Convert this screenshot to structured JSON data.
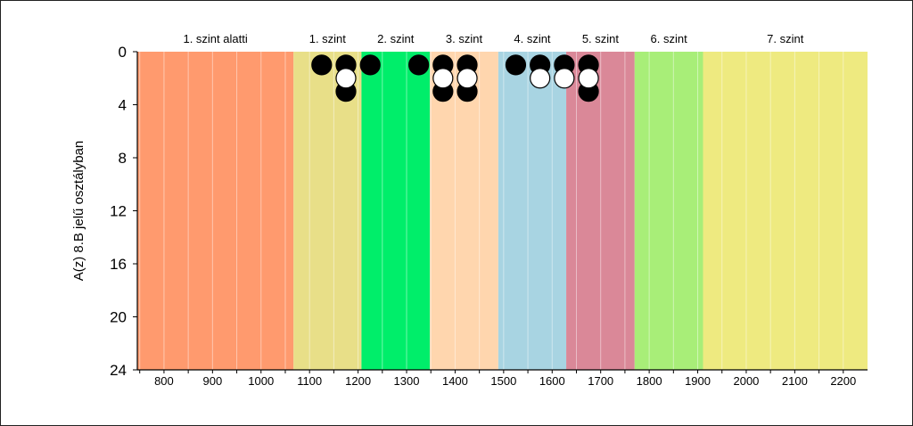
{
  "chart_data": {
    "type": "scatter",
    "title": "",
    "xlabel": "",
    "ylabel": "A(z) 8.B jelű osztályban",
    "xlim": [
      745,
      2250
    ],
    "ylim": [
      0,
      24
    ],
    "y_inverted": true,
    "x_ticks": [
      800,
      900,
      1000,
      1100,
      1200,
      1300,
      1400,
      1500,
      1600,
      1700,
      1800,
      1900,
      2000,
      2100,
      2200
    ],
    "y_ticks": [
      0,
      4,
      8,
      12,
      16,
      20,
      24
    ],
    "grid": "vertical",
    "bands": [
      {
        "label": "1. szint alatti",
        "from": 745,
        "to": 1067,
        "color": "#FF9A6E"
      },
      {
        "label": "1. szint",
        "from": 1067,
        "to": 1207,
        "color": "#E8DF88"
      },
      {
        "label": "2. szint",
        "from": 1207,
        "to": 1348,
        "color": "#00EE6A"
      },
      {
        "label": "3. szint",
        "from": 1348,
        "to": 1489,
        "color": "#FFD6AE"
      },
      {
        "label": "4. szint",
        "from": 1489,
        "to": 1629,
        "color": "#A8D4E2"
      },
      {
        "label": "5. szint",
        "from": 1629,
        "to": 1770,
        "color": "#DA8898"
      },
      {
        "label": "6. szint",
        "from": 1770,
        "to": 1911,
        "color": "#A8EE78"
      },
      {
        "label": "7. szint",
        "from": 1911,
        "to": 2250,
        "color": "#EEEA80"
      }
    ],
    "series": [
      {
        "fill": "black",
        "points": [
          [
            1125,
            1
          ],
          [
            1175,
            1
          ],
          [
            1175,
            3
          ],
          [
            1225,
            1
          ],
          [
            1325,
            1
          ],
          [
            1375,
            1
          ],
          [
            1375,
            3
          ],
          [
            1425,
            1
          ],
          [
            1425,
            3
          ],
          [
            1525,
            1
          ],
          [
            1575,
            1
          ],
          [
            1625,
            1
          ],
          [
            1675,
            1
          ],
          [
            1675,
            3
          ]
        ]
      },
      {
        "fill": "white",
        "points": [
          [
            1175,
            2
          ],
          [
            1375,
            2
          ],
          [
            1425,
            2
          ],
          [
            1575,
            2
          ],
          [
            1625,
            2
          ],
          [
            1675,
            2
          ]
        ]
      }
    ]
  }
}
